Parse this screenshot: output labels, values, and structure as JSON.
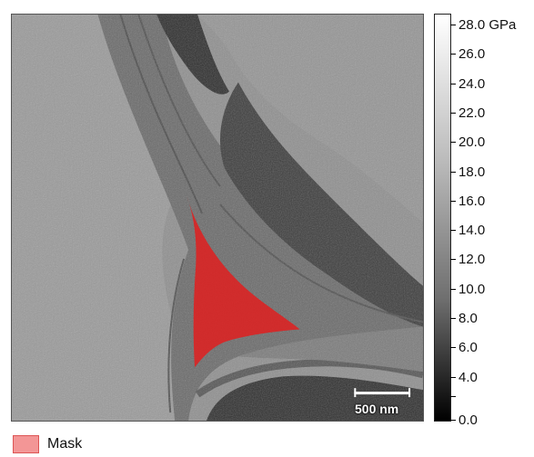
{
  "colorbar": {
    "ticks": [
      "28.0 GPa",
      "26.0",
      "24.0",
      "22.0",
      "20.0",
      "18.0",
      "16.0",
      "14.0",
      "12.0",
      "10.0",
      "8.0",
      "6.0",
      "4.0",
      "0.0"
    ],
    "gradient_top": "#ffffff",
    "gradient_bottom": "#000000"
  },
  "scale_bar": {
    "label": "500 nm"
  },
  "legend": {
    "label": "Mask",
    "color": "#f39696"
  },
  "mask_color": "#e01f1f"
}
